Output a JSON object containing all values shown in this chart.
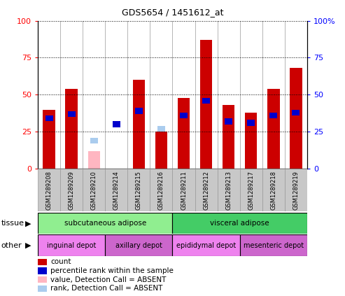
{
  "title": "GDS5654 / 1451612_at",
  "samples": [
    "GSM1289208",
    "GSM1289209",
    "GSM1289210",
    "GSM1289214",
    "GSM1289215",
    "GSM1289216",
    "GSM1289211",
    "GSM1289212",
    "GSM1289213",
    "GSM1289217",
    "GSM1289218",
    "GSM1289219"
  ],
  "count_values": [
    40,
    54,
    0,
    0,
    60,
    25,
    48,
    87,
    43,
    38,
    54,
    68
  ],
  "count_absent": [
    0,
    0,
    12,
    0,
    0,
    0,
    0,
    0,
    0,
    0,
    0,
    0
  ],
  "rank_values": [
    34,
    37,
    0,
    30,
    39,
    0,
    36,
    46,
    32,
    31,
    36,
    38
  ],
  "rank_absent": [
    0,
    0,
    19,
    0,
    0,
    27,
    0,
    0,
    0,
    0,
    0,
    0
  ],
  "tissue_groups": [
    {
      "label": "subcutaneous adipose",
      "start": 0,
      "end": 6,
      "color": "#90EE90"
    },
    {
      "label": "visceral adipose",
      "start": 6,
      "end": 12,
      "color": "#44CC66"
    }
  ],
  "other_groups": [
    {
      "label": "inguinal depot",
      "start": 0,
      "end": 3,
      "color": "#EE82EE"
    },
    {
      "label": "axillary depot",
      "start": 3,
      "end": 6,
      "color": "#CC66CC"
    },
    {
      "label": "epididymal depot",
      "start": 6,
      "end": 9,
      "color": "#EE82EE"
    },
    {
      "label": "mesenteric depot",
      "start": 9,
      "end": 12,
      "color": "#CC66CC"
    }
  ],
  "ylim": [
    0,
    100
  ],
  "bar_color_count": "#CC0000",
  "bar_color_rank": "#0000CC",
  "bar_color_absent_value": "#FFB6C1",
  "bar_color_absent_rank": "#AACCEE",
  "bar_width": 0.55,
  "right_ytick_labels": [
    "0",
    "25",
    "50",
    "75",
    "100%"
  ],
  "left_ytick_labels": [
    "0",
    "25",
    "50",
    "75",
    "100"
  ],
  "yticks": [
    0,
    25,
    50,
    75,
    100
  ]
}
